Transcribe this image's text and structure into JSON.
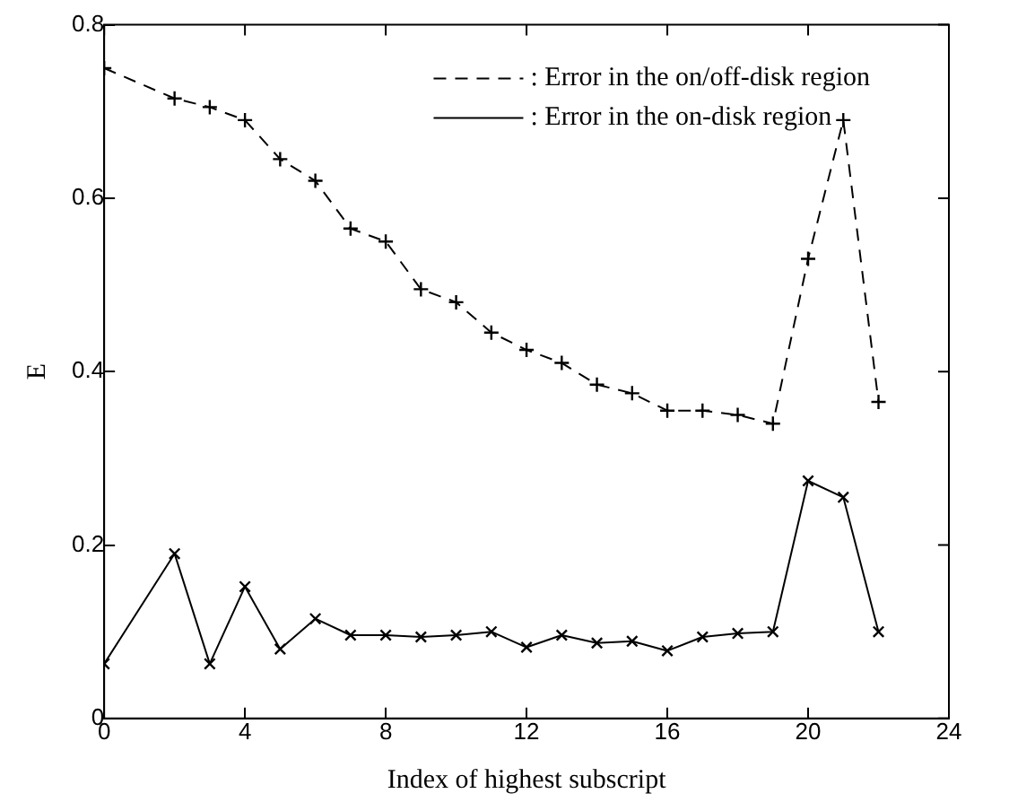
{
  "chart_data": {
    "type": "line",
    "xlabel": "Index of highest subscript",
    "ylabel": "E",
    "xlim": [
      0,
      24
    ],
    "xticks": [
      0,
      4,
      8,
      12,
      16,
      20,
      24
    ],
    "ylim": [
      0,
      0.8
    ],
    "yticks": [
      0,
      0.2,
      0.4,
      0.6,
      0.8
    ],
    "grid": false,
    "legend": "top right",
    "series": [
      {
        "name": ": Error in the on/off-disk region",
        "color": "#000000",
        "line_style": "dashed",
        "marker": "cross",
        "x": [
          0,
          2,
          3,
          4,
          5,
          6,
          7,
          8,
          9,
          10,
          11,
          12,
          13,
          14,
          15,
          16,
          17,
          18,
          19,
          20,
          21,
          22
        ],
        "values": [
          0.75,
          0.715,
          0.705,
          0.69,
          0.645,
          0.62,
          0.565,
          0.55,
          0.495,
          0.48,
          0.445,
          0.425,
          0.41,
          0.385,
          0.375,
          0.355,
          0.355,
          0.35,
          0.34,
          0.53,
          0.69,
          0.365
        ]
      },
      {
        "name": ": Error in the on-disk region",
        "color": "#000000",
        "line_style": "solid",
        "marker": "x",
        "x": [
          0,
          2,
          3,
          4,
          5,
          6,
          7,
          8,
          9,
          10,
          11,
          12,
          13,
          14,
          15,
          16,
          17,
          18,
          19,
          20,
          21,
          22
        ],
        "values": [
          0.063,
          0.19,
          0.063,
          0.152,
          0.08,
          0.115,
          0.096,
          0.096,
          0.094,
          0.096,
          0.1,
          0.082,
          0.096,
          0.087,
          0.089,
          0.078,
          0.094,
          0.098,
          0.1,
          0.274,
          0.255,
          0.1
        ]
      }
    ]
  }
}
